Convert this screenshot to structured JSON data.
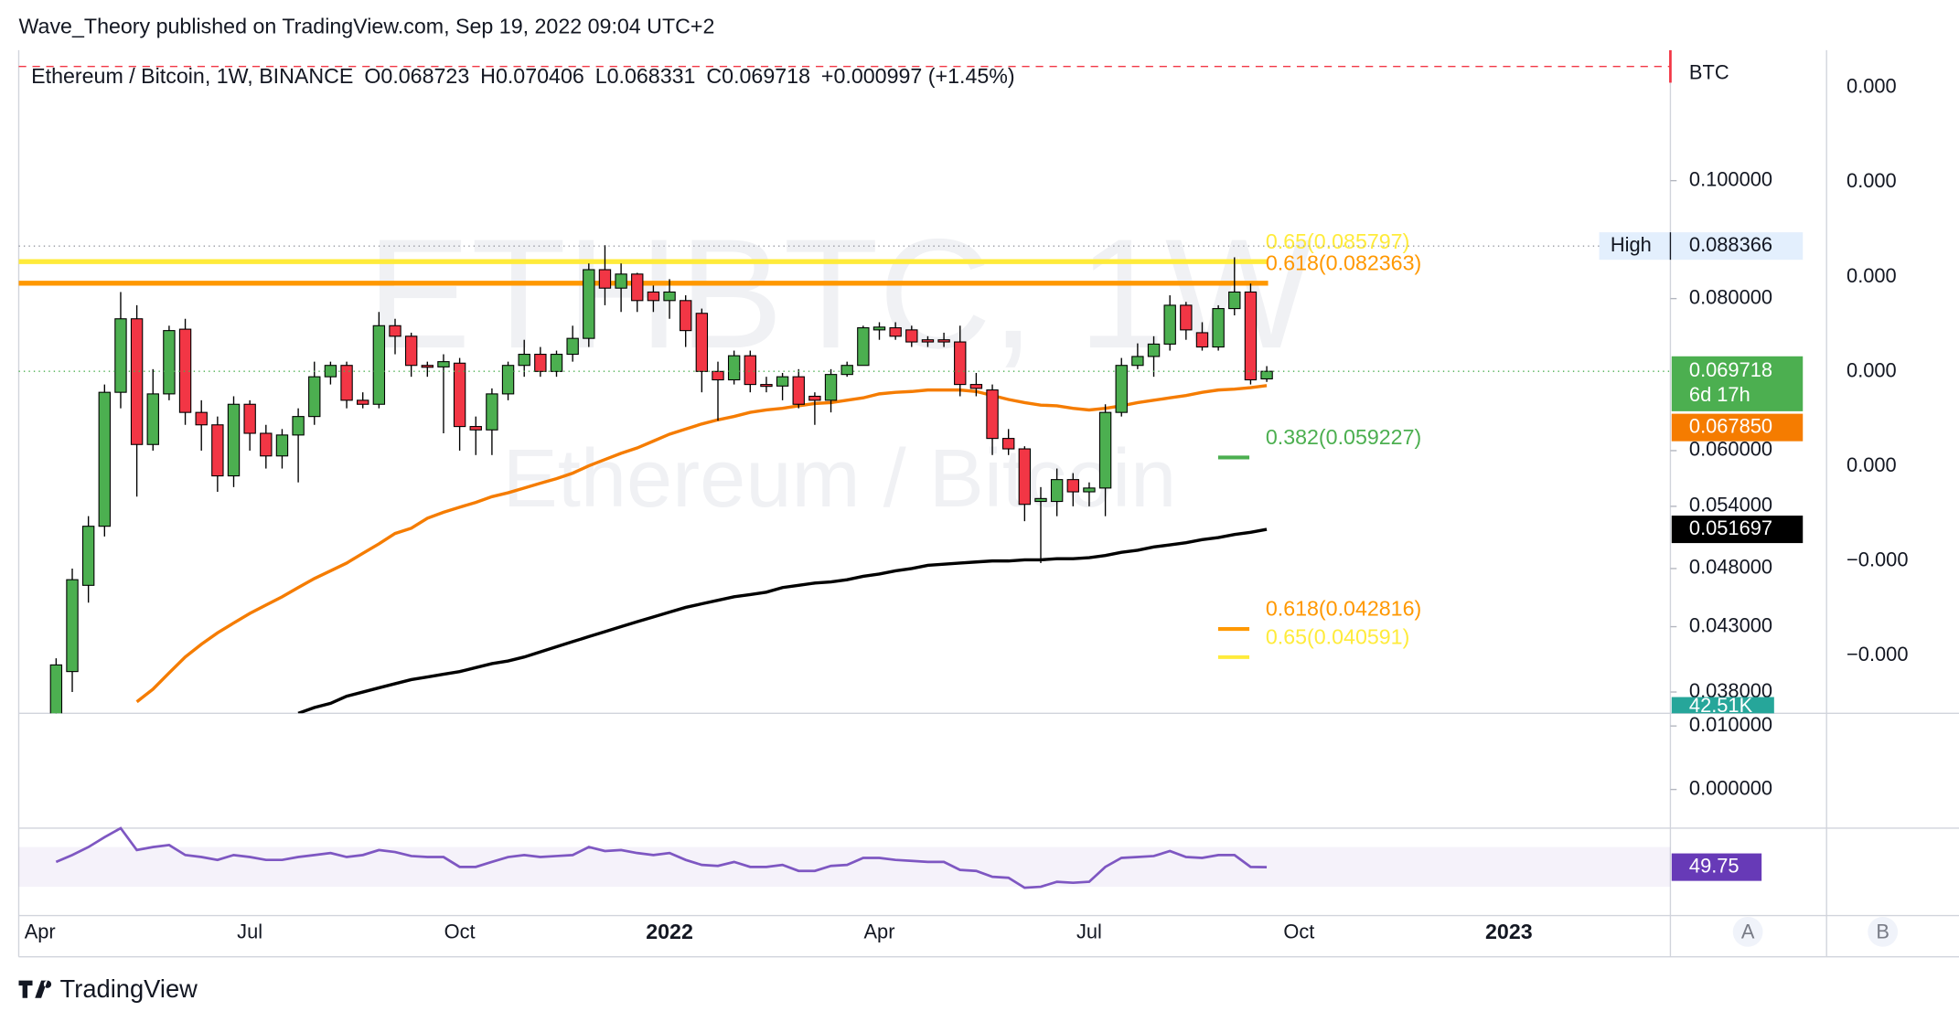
{
  "chart_data": {
    "type": "candlestick",
    "publisher": "Wave_Theory published on TradingView.com, Sep 19, 2022 09:04 UTC+2",
    "symbol": "Ethereum / Bitcoin, 1W, BINANCE",
    "ohlc_labels": [
      "O0.068723",
      "H0.070406",
      "L0.068331",
      "C0.069718",
      "+0.000997 (+1.45%)"
    ],
    "watermark": "ETHBTC, 1W",
    "watermark_sub": "Ethereum / Bitcoin",
    "currency": "BTC",
    "brand": "TradingView",
    "scale_buttons": [
      "A",
      "B"
    ],
    "log_scale": true,
    "ylim": [
      0.0365,
      0.128
    ],
    "yticks": [
      {
        "value": 0.1,
        "label": "0.100000"
      },
      {
        "value": 0.08,
        "label": "0.080000"
      },
      {
        "value": 0.06,
        "label": "0.060000"
      },
      {
        "value": 0.054,
        "label": "0.054000"
      },
      {
        "value": 0.048,
        "label": "0.048000"
      },
      {
        "value": 0.043,
        "label": "0.043000"
      },
      {
        "value": 0.038,
        "label": "0.038000"
      }
    ],
    "overlay_axis_labels": [
      "0.000",
      "0.000",
      "0.000",
      "0.000",
      "0.000",
      "−0.000",
      "−0.000"
    ],
    "categories": [
      "Apr",
      null,
      null,
      null,
      null,
      null,
      null,
      null,
      null,
      null,
      null,
      null,
      null,
      "Jul",
      null,
      null,
      null,
      null,
      null,
      null,
      null,
      null,
      null,
      null,
      null,
      null,
      "Oct",
      null,
      null,
      null,
      null,
      null,
      null,
      null,
      null,
      null,
      null,
      null,
      null,
      "2022",
      null,
      null,
      null,
      null,
      null,
      null,
      null,
      null,
      null,
      null,
      null,
      null,
      "Apr",
      null,
      null,
      null,
      null,
      null,
      null,
      null,
      null,
      null,
      null,
      null,
      null,
      "Jul",
      null,
      null,
      null,
      null,
      null,
      null,
      null,
      null,
      null,
      null,
      null,
      null,
      "Oct",
      null,
      null,
      null,
      null,
      null,
      null,
      null,
      null,
      null,
      null,
      null,
      null,
      "2023"
    ],
    "up_color": "#4caf50",
    "down_color": "#f23645",
    "candles": [
      null,
      [
        0.033,
        0.0405,
        0.032,
        0.04
      ],
      [
        0.0395,
        0.048,
        0.038,
        0.047
      ],
      [
        0.0465,
        0.053,
        0.045,
        0.052
      ],
      [
        0.052,
        0.068,
        0.051,
        0.067
      ],
      [
        0.067,
        0.081,
        0.065,
        0.077
      ],
      [
        0.077,
        0.079,
        0.055,
        0.0607
      ],
      [
        0.0607,
        0.07,
        0.06,
        0.0668
      ],
      [
        0.0668,
        0.076,
        0.066,
        0.0753
      ],
      [
        0.0755,
        0.077,
        0.063,
        0.0645
      ],
      [
        0.0645,
        0.066,
        0.06,
        0.063
      ],
      [
        0.063,
        0.064,
        0.0555,
        0.0572
      ],
      [
        0.0572,
        0.0665,
        0.056,
        0.0655
      ],
      [
        0.0655,
        0.066,
        0.06,
        0.062
      ],
      [
        0.062,
        0.063,
        0.058,
        0.0594
      ],
      [
        0.0594,
        0.0625,
        0.058,
        0.0618
      ],
      [
        0.0618,
        0.065,
        0.0565,
        0.064
      ],
      [
        0.064,
        0.071,
        0.063,
        0.069
      ],
      [
        0.069,
        0.071,
        0.068,
        0.0705
      ],
      [
        0.0705,
        0.071,
        0.065,
        0.066
      ],
      [
        0.066,
        0.067,
        0.065,
        0.0655
      ],
      [
        0.0655,
        0.078,
        0.065,
        0.076
      ],
      [
        0.076,
        0.077,
        0.072,
        0.0745
      ],
      [
        0.0745,
        0.075,
        0.069,
        0.0705
      ],
      [
        0.0705,
        0.071,
        0.069,
        0.0703
      ],
      [
        0.0703,
        0.072,
        0.062,
        0.071
      ],
      [
        0.0708,
        0.0715,
        0.06,
        0.0628
      ],
      [
        0.0628,
        0.064,
        0.0595,
        0.0624
      ],
      [
        0.0624,
        0.0675,
        0.0595,
        0.0668
      ],
      [
        0.0668,
        0.071,
        0.066,
        0.0705
      ],
      [
        0.0705,
        0.074,
        0.069,
        0.072
      ],
      [
        0.072,
        0.073,
        0.069,
        0.0697
      ],
      [
        0.0697,
        0.0725,
        0.069,
        0.072
      ],
      [
        0.072,
        0.076,
        0.071,
        0.0742
      ],
      [
        0.0742,
        0.0855,
        0.073,
        0.0845
      ],
      [
        0.0845,
        0.0885,
        0.079,
        0.0816
      ],
      [
        0.0816,
        0.0855,
        0.078,
        0.0838
      ],
      [
        0.0838,
        0.084,
        0.078,
        0.0797
      ],
      [
        0.081,
        0.082,
        0.078,
        0.0797
      ],
      [
        0.0797,
        0.083,
        0.077,
        0.081
      ],
      [
        0.0797,
        0.0805,
        0.073,
        0.0753
      ],
      [
        0.0778,
        0.0785,
        0.067,
        0.0697
      ],
      [
        0.0697,
        0.071,
        0.0635,
        0.0686
      ],
      [
        0.0686,
        0.0725,
        0.068,
        0.0718
      ],
      [
        0.0718,
        0.0725,
        0.067,
        0.068
      ],
      [
        0.068,
        0.069,
        0.067,
        0.0678
      ],
      [
        0.0678,
        0.0695,
        0.066,
        0.069
      ],
      [
        0.069,
        0.07,
        0.065,
        0.0655
      ],
      [
        0.0665,
        0.067,
        0.063,
        0.066
      ],
      [
        0.066,
        0.07,
        0.0645,
        0.0693
      ],
      [
        0.0693,
        0.071,
        0.069,
        0.0705
      ],
      [
        0.0705,
        0.076,
        0.0705,
        0.0757
      ],
      [
        0.0754,
        0.0765,
        0.074,
        0.0758
      ],
      [
        0.0757,
        0.0765,
        0.074,
        0.0745
      ],
      [
        0.0754,
        0.076,
        0.073,
        0.0737
      ],
      [
        0.074,
        0.0745,
        0.073,
        0.0737
      ],
      [
        0.074,
        0.075,
        0.073,
        0.0737
      ],
      [
        0.0737,
        0.076,
        0.0665,
        0.068
      ],
      [
        0.068,
        0.0695,
        0.0665,
        0.0675
      ],
      [
        0.0673,
        0.068,
        0.0595,
        0.0614
      ],
      [
        0.0614,
        0.0625,
        0.0595,
        0.0602
      ],
      [
        0.0602,
        0.0605,
        0.0525,
        0.0542
      ],
      [
        0.0545,
        0.056,
        0.0485,
        0.0548
      ],
      [
        0.0545,
        0.058,
        0.053,
        0.0568
      ],
      [
        0.0568,
        0.0575,
        0.054,
        0.0555
      ],
      [
        0.0555,
        0.0565,
        0.054,
        0.0559
      ],
      [
        0.0559,
        0.0655,
        0.053,
        0.0645
      ],
      [
        0.0645,
        0.0715,
        0.064,
        0.0705
      ],
      [
        0.0705,
        0.0735,
        0.07,
        0.0717
      ],
      [
        0.0717,
        0.0745,
        0.069,
        0.0734
      ],
      [
        0.0734,
        0.0805,
        0.0725,
        0.079
      ],
      [
        0.079,
        0.0795,
        0.074,
        0.0754
      ],
      [
        0.075,
        0.0765,
        0.0725,
        0.073
      ],
      [
        0.073,
        0.079,
        0.0725,
        0.0785
      ],
      [
        0.0785,
        0.0865,
        0.0775,
        0.081
      ],
      [
        0.081,
        0.0823,
        0.068,
        0.0686
      ],
      [
        0.068723,
        0.070406,
        0.068331,
        0.069718
      ],
      null,
      null,
      null,
      null,
      null,
      null,
      null,
      null,
      null,
      null,
      null,
      null,
      null,
      null,
      null
    ],
    "lines": [
      {
        "color": "#f57c00",
        "tag": {
          "value": 0.06785,
          "label": "0.067850"
        },
        "values": [
          null,
          null,
          null,
          null,
          null,
          null,
          0.0373,
          0.0382,
          0.0394,
          0.0406,
          0.0416,
          0.0425,
          0.0433,
          0.0441,
          0.0448,
          0.0455,
          0.0463,
          0.0471,
          0.0478,
          0.0485,
          0.0494,
          0.0503,
          0.0513,
          0.0518,
          0.0528,
          0.0534,
          0.0539,
          0.0544,
          0.055,
          0.0554,
          0.0559,
          0.0564,
          0.0569,
          0.0575,
          0.0583,
          0.059,
          0.0597,
          0.0603,
          0.0611,
          0.0619,
          0.0625,
          0.0631,
          0.0636,
          0.064,
          0.0645,
          0.0648,
          0.065,
          0.0653,
          0.0656,
          0.0657,
          0.066,
          0.0663,
          0.0668,
          0.067,
          0.0671,
          0.0673,
          0.0673,
          0.0673,
          0.0671,
          0.0666,
          0.0661,
          0.0657,
          0.0654,
          0.0653,
          0.065,
          0.0648,
          0.065,
          0.0653,
          0.0657,
          0.066,
          0.0663,
          0.0666,
          0.067,
          0.0673,
          0.0674,
          0.0676,
          0.06785,
          null,
          null,
          null,
          null,
          null,
          null,
          null,
          null,
          null,
          null,
          null,
          null,
          null,
          null,
          null
        ]
      },
      {
        "color": "#000000",
        "tag": {
          "value": 0.051697,
          "label": "0.051697"
        },
        "values": [
          null,
          null,
          null,
          null,
          null,
          null,
          null,
          null,
          null,
          null,
          null,
          null,
          null,
          null,
          null,
          null,
          0.0365,
          0.0369,
          0.0372,
          0.0377,
          0.038,
          0.0383,
          0.0386,
          0.0389,
          0.0391,
          0.0393,
          0.0395,
          0.0398,
          0.0401,
          0.0403,
          0.0406,
          0.041,
          0.0414,
          0.0418,
          0.0422,
          0.0426,
          0.043,
          0.0434,
          0.0438,
          0.0442,
          0.0446,
          0.0449,
          0.0452,
          0.0455,
          0.0457,
          0.0459,
          0.0463,
          0.0465,
          0.0467,
          0.0468,
          0.047,
          0.0473,
          0.0475,
          0.0478,
          0.048,
          0.0483,
          0.0484,
          0.0485,
          0.0486,
          0.0487,
          0.0487,
          0.0488,
          0.0488,
          0.0489,
          0.0489,
          0.049,
          0.0492,
          0.0495,
          0.0497,
          0.05,
          0.0502,
          0.0504,
          0.0507,
          0.0509,
          0.0512,
          0.0514,
          0.051697,
          null,
          null,
          null,
          null,
          null,
          null,
          null,
          null,
          null,
          null,
          null,
          null,
          null,
          null,
          null
        ]
      }
    ],
    "fib_levels": [
      {
        "value": 0.085797,
        "label": "0.65(0.085797)",
        "color": "#ffeb3b",
        "style": "line"
      },
      {
        "value": 0.082363,
        "label": "0.618(0.082363)",
        "color": "#ff9800",
        "style": "line"
      },
      {
        "value": 0.059227,
        "label": "0.382(0.059227)",
        "color": "#4caf50",
        "style": "marker"
      },
      {
        "value": 0.042816,
        "label": "0.618(0.042816)",
        "color": "#ff9800",
        "style": "marker"
      },
      {
        "value": 0.040591,
        "label": "0.65(0.040591)",
        "color": "#ffeb3b",
        "style": "marker"
      }
    ],
    "high": {
      "text": "High",
      "value": 0.088366,
      "label": "0.088366"
    },
    "last_tag": {
      "value": 0.069718,
      "label": "0.069718",
      "countdown": "6d 17h",
      "color": "#4caf50"
    },
    "volume_tag": "42.51K",
    "macd": {
      "ylim": [
        -0.0061,
        0.0118
      ],
      "yticks": [
        {
          "value": 0.01,
          "label": "0.010000"
        },
        {
          "value": 0,
          "label": "0.000000"
        }
      ]
    },
    "rsi": {
      "ylim": [
        11,
        89
      ],
      "band": [
        30,
        70
      ],
      "color": "#7e57c2",
      "values": [
        null,
        55,
        62,
        70,
        80,
        89,
        67,
        70,
        72,
        62,
        60,
        57,
        62,
        60,
        57,
        57,
        60,
        62,
        64,
        60,
        62,
        67,
        65,
        61,
        60,
        60,
        50,
        50,
        55,
        60,
        62,
        60,
        61,
        62,
        70,
        66,
        67,
        64,
        62,
        64,
        57,
        52,
        51,
        55,
        50,
        50,
        52,
        46,
        46,
        51,
        52,
        59,
        59,
        57,
        56,
        55,
        55,
        47,
        46,
        40,
        39,
        29,
        30,
        35,
        34,
        35,
        50,
        59,
        60,
        61,
        66,
        60,
        59,
        62,
        62,
        50,
        49.75,
        null,
        null,
        null,
        null,
        null,
        null,
        null,
        null,
        null,
        null,
        null,
        null,
        null,
        null,
        null
      ]
    }
  }
}
